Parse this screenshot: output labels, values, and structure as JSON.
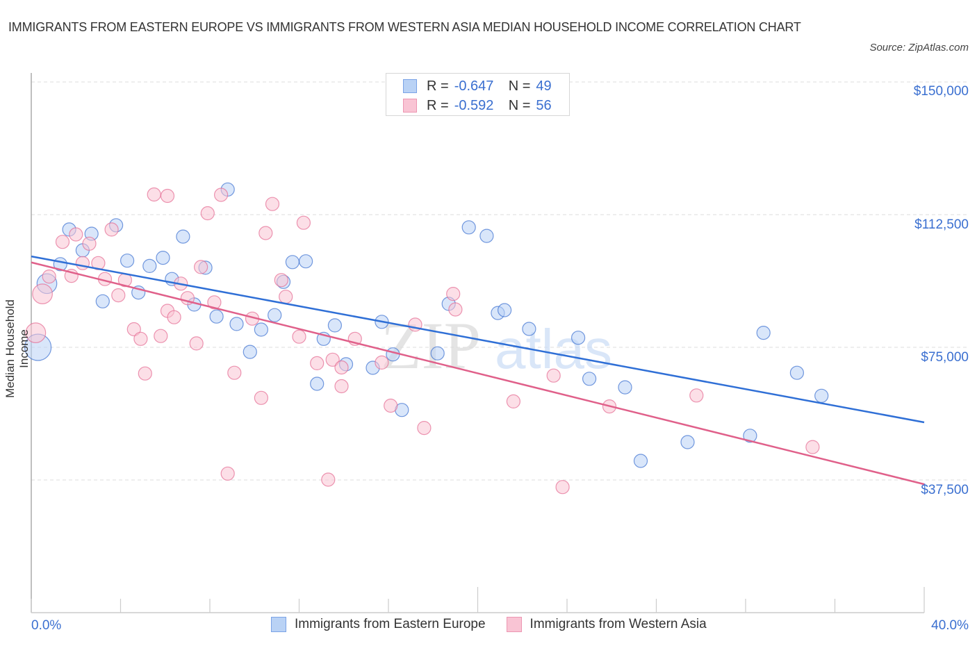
{
  "title": "IMMIGRANTS FROM EASTERN EUROPE VS IMMIGRANTS FROM WESTERN ASIA MEDIAN HOUSEHOLD INCOME CORRELATION CHART",
  "source": "Source: ZipAtlas.com",
  "watermark": {
    "zip": "ZIP",
    "atlas": "atlas"
  },
  "legend_stats": [
    {
      "r_label": "R =",
      "r_value": "-0.647",
      "n_label": "N =",
      "n_value": "49"
    },
    {
      "r_label": "R =",
      "r_value": "-0.592",
      "n_label": "N =",
      "n_value": "56"
    }
  ],
  "chart_data": {
    "type": "scatter",
    "title": "IMMIGRANTS FROM EASTERN EUROPE VS IMMIGRANTS FROM WESTERN ASIA MEDIAN HOUSEHOLD INCOME CORRELATION CHART",
    "xlabel": "",
    "ylabel": "Median Household Income",
    "xlim": [
      0,
      40
    ],
    "ylim": [
      0,
      155000
    ],
    "x_tick_labels": [
      "0.0%",
      "40.0%"
    ],
    "y_ticks": [
      37500,
      75000,
      112500,
      150000
    ],
    "y_tick_labels": [
      "$37,500",
      "$75,000",
      "$112,500",
      "$150,000"
    ],
    "grid": true,
    "legend_position": "bottom",
    "series": [
      {
        "name": "Immigrants from Eastern Europe",
        "color": "#3a6fd0",
        "fill": "#b9d2f5",
        "R": -0.647,
        "N": 49,
        "trend": {
          "x": [
            0,
            40
          ],
          "y": [
            100700,
            53800
          ]
        },
        "points": [
          [
            0.3,
            75000,
            2
          ],
          [
            0.7,
            93000,
            1.5
          ],
          [
            1.3,
            98500,
            1
          ],
          [
            1.7,
            108300,
            1
          ],
          [
            2.3,
            102400,
            1
          ],
          [
            2.7,
            107100,
            1
          ],
          [
            3.2,
            88000,
            1
          ],
          [
            3.8,
            109500,
            1
          ],
          [
            4.3,
            99500,
            1
          ],
          [
            4.8,
            90500,
            1
          ],
          [
            5.3,
            98000,
            1
          ],
          [
            5.9,
            100300,
            1
          ],
          [
            6.3,
            94300,
            1
          ],
          [
            6.8,
            106300,
            1
          ],
          [
            7.3,
            87100,
            1
          ],
          [
            7.8,
            97500,
            1
          ],
          [
            8.3,
            83700,
            1
          ],
          [
            8.8,
            119600,
            1
          ],
          [
            9.2,
            81600,
            1
          ],
          [
            9.8,
            73700,
            1
          ],
          [
            10.3,
            80000,
            1
          ],
          [
            10.9,
            84100,
            1
          ],
          [
            11.3,
            93500,
            1
          ],
          [
            11.7,
            99100,
            1
          ],
          [
            12.3,
            99300,
            1
          ],
          [
            12.8,
            64700,
            1
          ],
          [
            13.1,
            77400,
            1
          ],
          [
            13.6,
            81200,
            1
          ],
          [
            14.1,
            70200,
            1
          ],
          [
            15.3,
            69200,
            1
          ],
          [
            15.7,
            82200,
            1
          ],
          [
            16.2,
            73000,
            1
          ],
          [
            16.6,
            57300,
            1
          ],
          [
            18.2,
            73300,
            1
          ],
          [
            18.7,
            87300,
            1
          ],
          [
            19.6,
            108900,
            1
          ],
          [
            20.4,
            106500,
            1
          ],
          [
            20.9,
            84700,
            1
          ],
          [
            21.2,
            85500,
            1
          ],
          [
            22.3,
            80200,
            1
          ],
          [
            24.5,
            77700,
            1
          ],
          [
            25.0,
            66100,
            1
          ],
          [
            26.6,
            63700,
            1
          ],
          [
            27.3,
            42900,
            1
          ],
          [
            29.4,
            48200,
            1
          ],
          [
            32.2,
            50000,
            1
          ],
          [
            32.8,
            79100,
            1
          ],
          [
            34.3,
            67800,
            1
          ],
          [
            35.4,
            61300,
            1
          ]
        ]
      },
      {
        "name": "Immigrants from Western Asia",
        "color": "#e46a91",
        "fill": "#f9c4d4",
        "R": -0.592,
        "N": 56,
        "trend": {
          "x": [
            0,
            40
          ],
          "y": [
            99000,
            36300
          ]
        },
        "points": [
          [
            0.2,
            79100,
            1.5
          ],
          [
            0.5,
            90100,
            1.5
          ],
          [
            0.8,
            95000,
            1
          ],
          [
            1.4,
            104800,
            1
          ],
          [
            1.8,
            95200,
            1
          ],
          [
            2.0,
            106900,
            1
          ],
          [
            2.3,
            98800,
            1
          ],
          [
            2.6,
            104300,
            1
          ],
          [
            3.0,
            98800,
            1
          ],
          [
            3.3,
            94300,
            1
          ],
          [
            3.6,
            108300,
            1
          ],
          [
            3.9,
            89700,
            1
          ],
          [
            4.2,
            94000,
            1
          ],
          [
            4.6,
            80100,
            1
          ],
          [
            4.9,
            77400,
            1
          ],
          [
            5.1,
            67600,
            1
          ],
          [
            5.5,
            118200,
            1
          ],
          [
            5.8,
            78200,
            1
          ],
          [
            6.1,
            85300,
            1
          ],
          [
            6.4,
            83500,
            1
          ],
          [
            6.7,
            93000,
            1
          ],
          [
            7.0,
            88900,
            1
          ],
          [
            7.4,
            76100,
            1
          ],
          [
            7.6,
            97700,
            1
          ],
          [
            7.9,
            112900,
            1
          ],
          [
            8.2,
            87700,
            1
          ],
          [
            8.5,
            118100,
            1
          ],
          [
            8.8,
            39300,
            1
          ],
          [
            9.1,
            67800,
            1
          ],
          [
            9.9,
            83100,
            1
          ],
          [
            10.3,
            60700,
            1
          ],
          [
            10.5,
            107300,
            1
          ],
          [
            10.8,
            115500,
            1
          ],
          [
            11.2,
            94000,
            1
          ],
          [
            11.4,
            89300,
            1
          ],
          [
            12.0,
            78000,
            1
          ],
          [
            12.2,
            110200,
            1
          ],
          [
            12.8,
            70500,
            1
          ],
          [
            13.3,
            37600,
            1
          ],
          [
            13.5,
            71500,
            1
          ],
          [
            13.9,
            64000,
            1
          ],
          [
            13.9,
            69300,
            1
          ],
          [
            14.5,
            77400,
            1
          ],
          [
            15.7,
            70700,
            1
          ],
          [
            16.1,
            58500,
            1
          ],
          [
            17.2,
            81400,
            1
          ],
          [
            17.6,
            52200,
            1
          ],
          [
            19.0,
            85700,
            1
          ],
          [
            18.9,
            90100,
            1
          ],
          [
            21.6,
            59700,
            1
          ],
          [
            23.4,
            67000,
            1
          ],
          [
            23.8,
            35500,
            1
          ],
          [
            25.9,
            58300,
            1
          ],
          [
            29.8,
            61400,
            1
          ],
          [
            35.0,
            46800,
            1
          ],
          [
            6.1,
            117800,
            1
          ]
        ]
      }
    ]
  }
}
